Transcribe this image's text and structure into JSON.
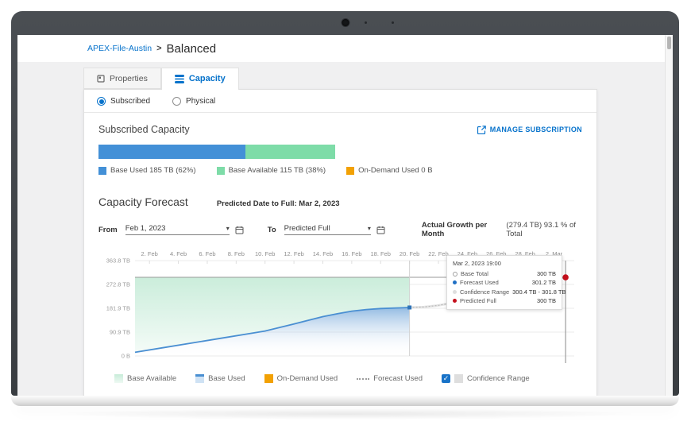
{
  "breadcrumb": {
    "parent_label": "APEX-File-Austin",
    "separator": ">",
    "current_label": "Balanced"
  },
  "tabs": {
    "properties": {
      "label": "Properties"
    },
    "capacity": {
      "label": "Capacity"
    }
  },
  "view_toggle": {
    "subscribed_label": "Subscribed",
    "physical_label": "Physical"
  },
  "subscribed_capacity": {
    "title": "Subscribed Capacity",
    "manage_label": "MANAGE SUBSCRIPTION",
    "bar": {
      "segments": [
        {
          "name": "Base Used",
          "pct": 62,
          "color": "#4390d7"
        },
        {
          "name": "Base Available",
          "pct": 38,
          "color": "#7edca8"
        }
      ]
    },
    "legend": [
      {
        "label": "Base Used 185 TB (62%)",
        "color": "#4390d7"
      },
      {
        "label": "Base Available 115 TB (38%)",
        "color": "#7edca8"
      },
      {
        "label": "On-Demand Used 0 B",
        "color": "#f2a104"
      }
    ]
  },
  "forecast": {
    "title": "Capacity Forecast",
    "predicted_full_label": "Predicted Date to Full: Mar 2, 2023",
    "from_label": "From",
    "from_value": "Feb 1, 2023",
    "to_label": "To",
    "to_value": "Predicted Full",
    "caret_glyph": "▾",
    "growth_label": "Actual Growth per Month",
    "growth_value": "(279.4 TB) 93.1 % of Total",
    "tooltip": {
      "title": "Mar 2, 2023 19:00",
      "rows": [
        {
          "label": "Base Total",
          "value": "300 TB",
          "color": "#9e9e9e"
        },
        {
          "label": "Forecast Used",
          "value": "301.2 TB",
          "color": "#1f6fc4"
        },
        {
          "label": "Confidence Range",
          "value": "300.4 TB - 301.8 TB",
          "color": "#dedede"
        },
        {
          "label": "Predicted Full",
          "value": "300 TB",
          "color": "#c40f1c"
        }
      ]
    },
    "legend": {
      "base_available": "Base Available",
      "base_used": "Base Used",
      "on_demand": "On-Demand Used",
      "forecast_used": "Forecast Used",
      "confidence": {
        "label": "Confidence Range",
        "checked": true,
        "check_glyph": "✓"
      }
    }
  },
  "chart_data": {
    "type": "area",
    "title": "Capacity Forecast",
    "x_axis_note": "days since Feb 1, 2023",
    "x_domain_days": [
      0,
      30.4
    ],
    "ylim": [
      0,
      363.8
    ],
    "grid": "horizontal",
    "y_ticks": [
      {
        "label": "363.8 TB",
        "value": 363.8
      },
      {
        "label": "272.8 TB",
        "value": 272.8
      },
      {
        "label": "181.9 TB",
        "value": 181.9
      },
      {
        "label": "90.9 TB",
        "value": 90.9
      },
      {
        "label": "0 B",
        "value": 0
      }
    ],
    "x_ticks": [
      {
        "label": "2. Feb",
        "day": 1
      },
      {
        "label": "4. Feb",
        "day": 3
      },
      {
        "label": "6. Feb",
        "day": 5
      },
      {
        "label": "8. Feb",
        "day": 7
      },
      {
        "label": "10. Feb",
        "day": 9
      },
      {
        "label": "12. Feb",
        "day": 11
      },
      {
        "label": "14. Feb",
        "day": 13
      },
      {
        "label": "16. Feb",
        "day": 15
      },
      {
        "label": "18. Feb",
        "day": 17
      },
      {
        "label": "20. Feb",
        "day": 19
      },
      {
        "label": "22. Feb",
        "day": 21
      },
      {
        "label": "24. Feb",
        "day": 23
      },
      {
        "label": "26. Feb",
        "day": 25
      },
      {
        "label": "28. Feb",
        "day": 27
      },
      {
        "label": "2. Mar",
        "day": 29
      }
    ],
    "base_total_tb": 300,
    "now_day": 19,
    "predicted_full": {
      "day": 29.8,
      "tb": 300,
      "color": "#c40f1c"
    },
    "series": [
      {
        "name": "Base Used",
        "color": "#4a8fd2",
        "fill": "blue-gradient",
        "points": [
          [
            0,
            14
          ],
          [
            2,
            32
          ],
          [
            4,
            50
          ],
          [
            6,
            68
          ],
          [
            8,
            86
          ],
          [
            9,
            95
          ],
          [
            11,
            122
          ],
          [
            13,
            150
          ],
          [
            14,
            161
          ],
          [
            15,
            171
          ],
          [
            16,
            177
          ],
          [
            17,
            181
          ],
          [
            19,
            185
          ]
        ]
      },
      {
        "name": "Base Available",
        "color": "#cdeedd",
        "note": "band between Base Used and Base Total, days 0-19"
      },
      {
        "name": "On-Demand Used",
        "color": "#f2a104",
        "points": []
      },
      {
        "name": "Forecast Used",
        "color": "#b9b9b9",
        "style": "dotted",
        "points": [
          [
            19,
            185
          ],
          [
            20,
            187
          ],
          [
            21,
            193
          ],
          [
            22,
            203
          ],
          [
            23,
            214
          ],
          [
            25,
            238
          ],
          [
            27,
            263
          ],
          [
            29,
            291
          ],
          [
            29.8,
            301.2
          ]
        ]
      },
      {
        "name": "Confidence Range",
        "color": "#e3e3e3",
        "range_tb_at_end": [
          300.4,
          301.8
        ]
      }
    ]
  }
}
